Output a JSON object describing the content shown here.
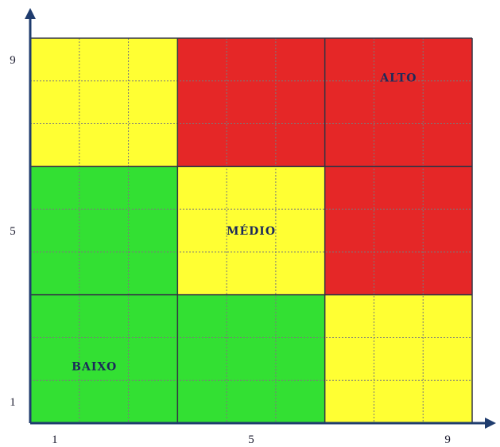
{
  "chart_data": {
    "type": "heatmap",
    "x": [
      1,
      2,
      3,
      4,
      5,
      6,
      7,
      8,
      9
    ],
    "y": [
      1,
      2,
      3,
      4,
      5,
      6,
      7,
      8,
      9
    ],
    "xlim": [
      1,
      9
    ],
    "ylim": [
      1,
      9
    ],
    "x_tick_labels": [
      "1",
      "5",
      "9"
    ],
    "y_tick_labels": [
      "1",
      "5",
      "9"
    ],
    "title": "",
    "xlabel": "",
    "ylabel": "",
    "grid": true,
    "blocks": [
      {
        "col": 1,
        "row": 1,
        "level": "low"
      },
      {
        "col": 2,
        "row": 1,
        "level": "low"
      },
      {
        "col": 3,
        "row": 1,
        "level": "medium"
      },
      {
        "col": 1,
        "row": 2,
        "level": "low"
      },
      {
        "col": 2,
        "row": 2,
        "level": "medium"
      },
      {
        "col": 3,
        "row": 2,
        "level": "high"
      },
      {
        "col": 1,
        "row": 3,
        "level": "medium"
      },
      {
        "col": 2,
        "row": 3,
        "level": "high"
      },
      {
        "col": 3,
        "row": 3,
        "level": "high"
      }
    ],
    "zone_labels": [
      {
        "text": "BAIXO",
        "col": 1,
        "row": 1
      },
      {
        "text": "MÉDIO",
        "col": 2,
        "row": 2
      },
      {
        "text": "ALTO",
        "col": 3,
        "row": 3
      }
    ],
    "colors": {
      "low": "#33e033",
      "medium": "#ffff33",
      "high": "#e52727",
      "grid_major": "#333344",
      "grid_minor": "#7a7a7a",
      "axis": "#1f3c6e"
    }
  }
}
